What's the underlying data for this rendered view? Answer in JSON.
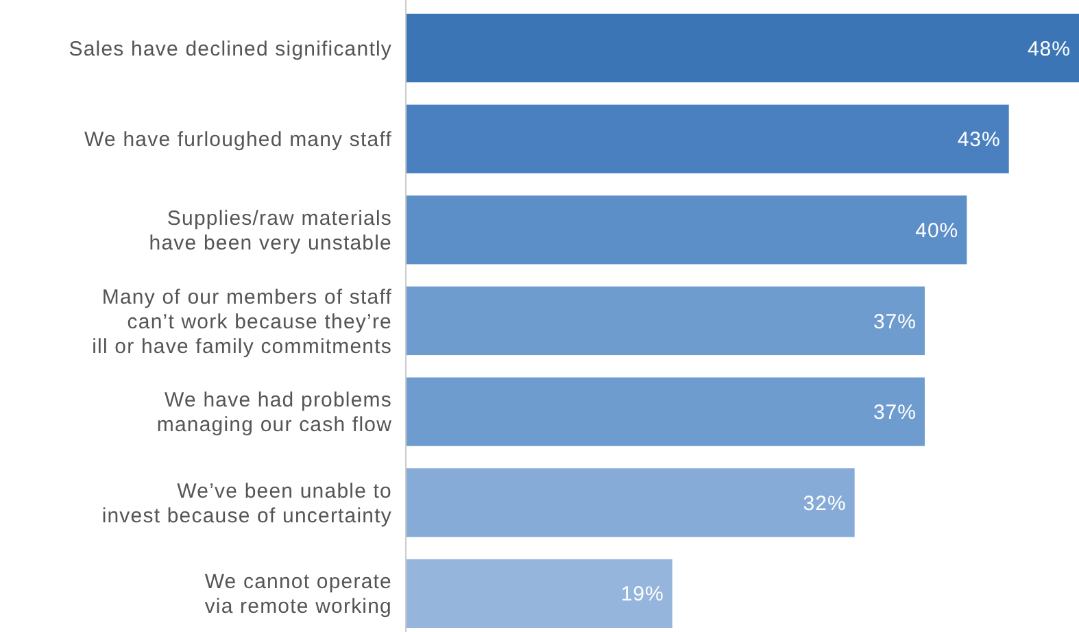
{
  "chart_data": {
    "type": "bar",
    "orientation": "horizontal",
    "value_labels": [
      "48%",
      "43%",
      "40%",
      "37%",
      "37%",
      "32%",
      "19%"
    ],
    "categories": [
      "Sales have declined significantly",
      "We have furloughed many staff",
      "Supplies/raw materials have been very unstable",
      "Many of our members of staff can’t work because they’re ill or have family commitments",
      "We have had problems managing our cash flow",
      "We’ve been unable to invest because of uncertainty",
      "We cannot operate via remote working"
    ],
    "values": [
      48,
      43,
      40,
      37,
      37,
      32,
      19
    ],
    "colors": [
      "#3b75b6",
      "#4a80c0",
      "#5c8ec8",
      "#6f9ccf",
      "#6f9ccf",
      "#86abd6",
      "#95b5dc"
    ]
  }
}
